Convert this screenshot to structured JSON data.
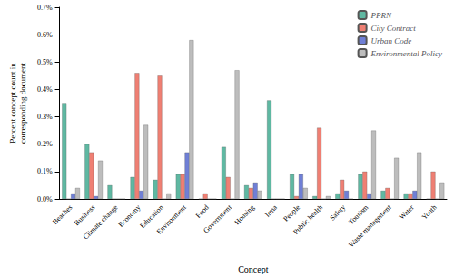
{
  "chart_data": {
    "type": "bar",
    "x_label": "Concept",
    "y_label": "Percent concept count in corresponding document",
    "categories": [
      "Beaches",
      "Business",
      "Climate change",
      "Economy",
      "Education",
      "Environment",
      "Food",
      "Government",
      "Housing",
      "Irma",
      "People",
      "Public health",
      "Safety",
      "Tourism",
      "Waste management",
      "Water",
      "Youth"
    ],
    "series": [
      {
        "name": "PPRN",
        "color": "#5fb8a2",
        "values": [
          0.35,
          0.2,
          0.05,
          0.08,
          0.07,
          0.09,
          0,
          0.19,
          0.05,
          0.36,
          0.09,
          0.01,
          0.02,
          0.09,
          0.03,
          0.02,
          0
        ]
      },
      {
        "name": "City Contract",
        "color": "#ef7f73",
        "values": [
          0,
          0.17,
          0,
          0.46,
          0.45,
          0.09,
          0.02,
          0.08,
          0.04,
          0,
          0.01,
          0.26,
          0.07,
          0.1,
          0.04,
          0.02,
          0.1
        ]
      },
      {
        "name": "Urban Code",
        "color": "#6f7fd6",
        "values": [
          0.02,
          0.01,
          0,
          0.03,
          0,
          0.17,
          0,
          0,
          0.06,
          0,
          0.09,
          0,
          0.03,
          0.02,
          0,
          0.03,
          0
        ]
      },
      {
        "name": "Environmental Policy",
        "color": "#bdbdbd",
        "values": [
          0.04,
          0.14,
          0,
          0.27,
          0.02,
          0.58,
          0,
          0.47,
          0.03,
          0,
          0.04,
          0.01,
          0,
          0.25,
          0.15,
          0.17,
          0.06
        ]
      }
    ],
    "ylim": [
      0,
      0.7
    ],
    "yticks": [
      {
        "value": 0,
        "label": "0.0%"
      },
      {
        "value": 0.1,
        "label": "0.1%"
      },
      {
        "value": 0.2,
        "label": "0.2%"
      },
      {
        "value": 0.3,
        "label": "0.3%"
      },
      {
        "value": 0.4,
        "label": "0.4%"
      },
      {
        "value": 0.5,
        "label": "0.5%"
      },
      {
        "value": 0.6,
        "label": "0.6%"
      },
      {
        "value": 0.7,
        "label": "0.7%"
      }
    ],
    "grid": false,
    "legend": "upper right"
  }
}
